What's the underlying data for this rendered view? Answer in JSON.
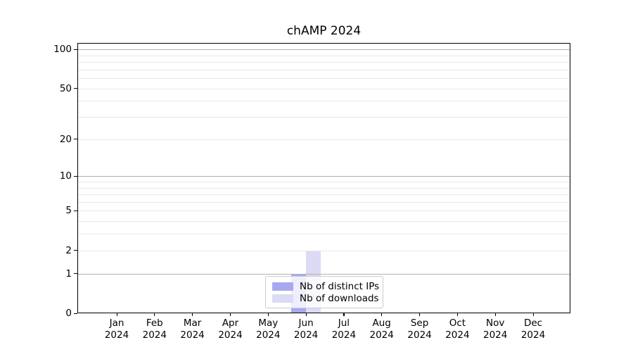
{
  "figure": {
    "title": "chAMP 2024"
  },
  "chart_data": {
    "type": "bar",
    "title": "chAMP 2024",
    "x_tick_labels": [
      {
        "line1": "Jan",
        "line2": "2024"
      },
      {
        "line1": "Feb",
        "line2": "2024"
      },
      {
        "line1": "Mar",
        "line2": "2024"
      },
      {
        "line1": "Apr",
        "line2": "2024"
      },
      {
        "line1": "May",
        "line2": "2024"
      },
      {
        "line1": "Jun",
        "line2": "2024"
      },
      {
        "line1": "Jul",
        "line2": "2024"
      },
      {
        "line1": "Aug",
        "line2": "2024"
      },
      {
        "line1": "Sep",
        "line2": "2024"
      },
      {
        "line1": "Oct",
        "line2": "2024"
      },
      {
        "line1": "Nov",
        "line2": "2024"
      },
      {
        "line1": "Dec",
        "line2": "2024"
      }
    ],
    "series": [
      {
        "name": "Nb of distinct IPs",
        "color": "#a8a8f0",
        "values": [
          0,
          0,
          0,
          0,
          0,
          1,
          0,
          0,
          0,
          0,
          0,
          0
        ]
      },
      {
        "name": "Nb of downloads",
        "color": "#dbdbf6",
        "values": [
          0,
          0,
          0,
          0,
          0,
          2,
          0,
          0,
          0,
          0,
          0,
          0
        ]
      }
    ],
    "y_axis": {
      "scale": "log10(1+y)",
      "min": 0,
      "max": 111.8,
      "tick_labels": [
        0,
        1,
        2,
        5,
        10,
        20,
        50,
        100
      ],
      "major_gridlines": [
        1,
        10,
        100
      ],
      "minor_gridlines": [
        2,
        3,
        4,
        5,
        6,
        7,
        8,
        9,
        20,
        30,
        40,
        50,
        60,
        70,
        80,
        90
      ]
    },
    "legend_position": "lower center",
    "grid": "both"
  },
  "colors": {
    "major_grid": "#b0b0b0",
    "minor_grid": "#e8e8e8",
    "spine": "#000000"
  }
}
